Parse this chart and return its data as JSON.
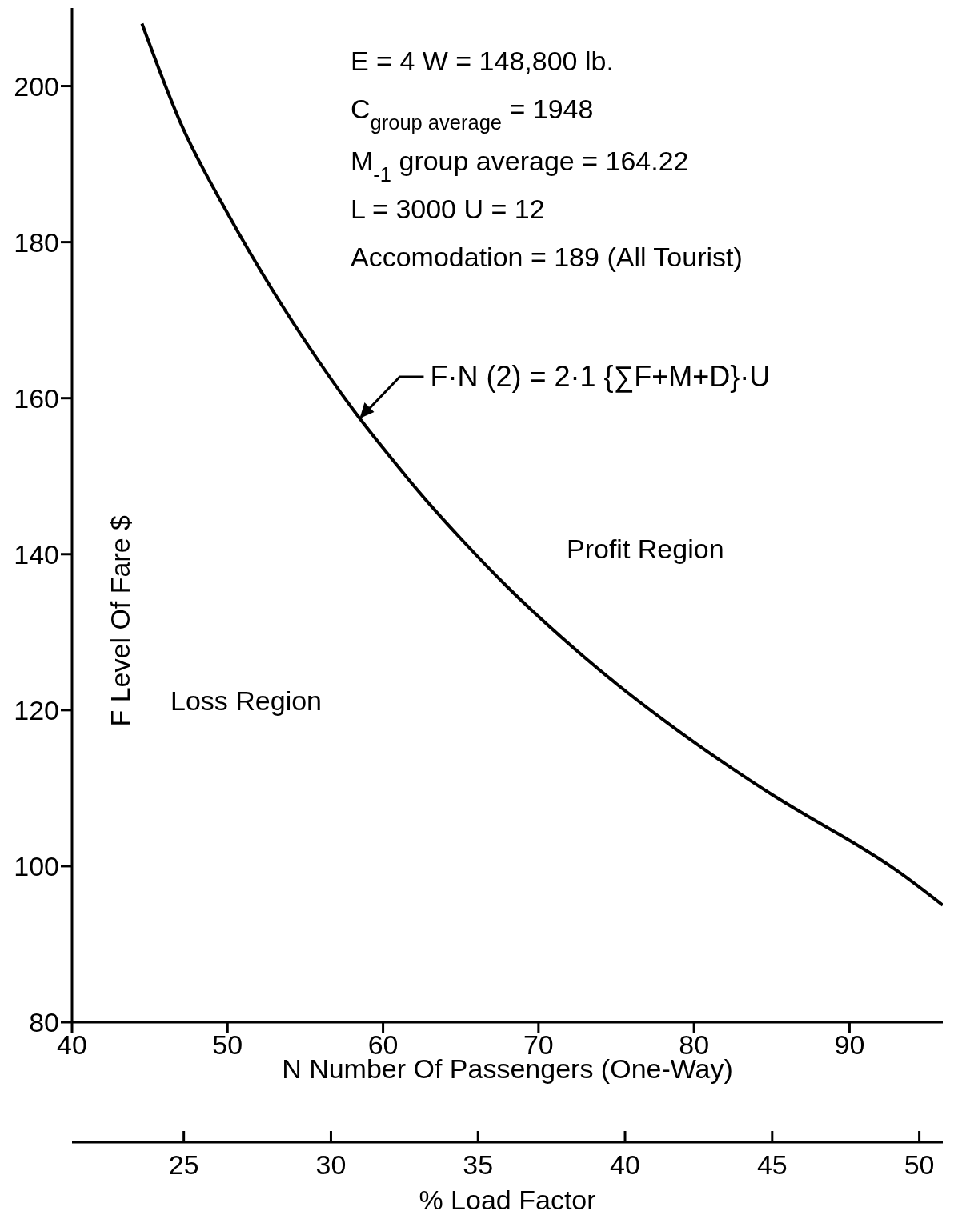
{
  "chart_data": {
    "type": "line",
    "xlabel": "N  Number Of Passengers (One-Way)",
    "ylabel": "F  Level Of Fare $",
    "x2label": "% Load Factor",
    "xlim": [
      40,
      96
    ],
    "xticks": [
      40,
      50,
      60,
      70,
      80,
      90
    ],
    "ylim": [
      80,
      210
    ],
    "yticks": [
      80,
      100,
      120,
      140,
      160,
      180,
      200
    ],
    "x2lim": [
      21.2,
      50.8
    ],
    "x2ticks": [
      25,
      30,
      35,
      40,
      45,
      50
    ],
    "grid": false,
    "marker": "none",
    "line_style": "solid",
    "series": [
      {
        "color": "#000000",
        "x": [
          44.5,
          47,
          50,
          53,
          55,
          58.5,
          60,
          63,
          65,
          68,
          70,
          73,
          75,
          78,
          80,
          83,
          85,
          88,
          90,
          93,
          96
        ],
        "values": [
          208,
          195.2,
          183.7,
          173.5,
          167.3,
          157.4,
          153.6,
          146.4,
          142,
          135.8,
          132,
          126.7,
          123.4,
          118.8,
          115.9,
          111.8,
          109.2,
          105.6,
          103.3,
          99.5,
          95
        ]
      }
    ],
    "annotations": [
      "E = 4   W = 148,800 lb.",
      "C$_{group average}$ = 1948",
      "M$_{-1}$ group average = 164.22",
      "L = 3000    U = 12",
      "Accomodation = 189 (All Tourist)",
      {
        "text": "F·N (2) = 2·1 {∑F+M+D}·U",
        "x": 58.5,
        "y": 157.4
      },
      "Profit Region",
      "Loss Region"
    ]
  }
}
